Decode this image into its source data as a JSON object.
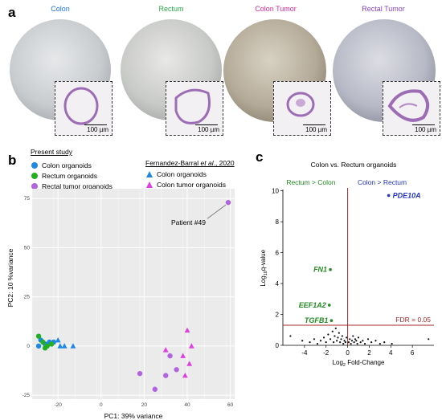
{
  "panel_a": {
    "letter": "a",
    "wells": [
      {
        "title": "Colon",
        "color": "#1a73e8",
        "scale": "100 µm",
        "tone": "#c9cccf"
      },
      {
        "title": "Rectum",
        "color": "#27a744",
        "scale": "100 µm",
        "tone": "#c8cac8"
      },
      {
        "title": "Colon Tumor",
        "color": "#d6269a",
        "scale": "100 µm",
        "tone": "#b4aa98"
      },
      {
        "title": "Rectal Tumor",
        "color": "#8a3fc4",
        "scale": "100 µm",
        "tone": "#b7b9c6"
      }
    ]
  },
  "panel_b": {
    "letter": "b",
    "legend_left_title": "Present study",
    "legend_left": [
      {
        "label": "Colon organoids",
        "color": "#1e88e5",
        "shape": "circle"
      },
      {
        "label": "Rectum organoids",
        "color": "#22b022",
        "shape": "circle"
      },
      {
        "label": "Rectal tumor organoids",
        "color": "#b264e0",
        "shape": "circle"
      }
    ],
    "legend_right_title_main": "Fernandez-Barral ",
    "legend_right_title_ital": "et al",
    "legend_right_title_end": "., 2020",
    "legend_right": [
      {
        "label": "Colon organoids",
        "color": "#1e88e5",
        "shape": "triangle"
      },
      {
        "label": "Colon tumor organoids",
        "color": "#e040e0",
        "shape": "triangle"
      }
    ],
    "annotation": "Patient #49",
    "chart_data": {
      "type": "scatter",
      "xlabel": "PC1: 39% variance",
      "ylabel": "PC2: 10 %variance",
      "xlim": [
        -32,
        62
      ],
      "ylim": [
        -27,
        80
      ],
      "xticks": [
        -20,
        0,
        20,
        40,
        60
      ],
      "yticks": [
        -25,
        0,
        25,
        50,
        75
      ],
      "xtick_labels": [
        "-20",
        "0",
        "20",
        "40",
        "60"
      ],
      "ytick_labels": [
        "-25",
        "0",
        "25",
        "50",
        "75"
      ],
      "grid": true,
      "series": [
        {
          "name": "Colon organoids",
          "shape": "circle",
          "color": "#1e88e5",
          "points": [
            [
              -28,
              3
            ],
            [
              -26,
              1
            ],
            [
              -24,
              2
            ],
            [
              -29,
              0
            ],
            [
              -22,
              2
            ]
          ]
        },
        {
          "name": "Rectum organoids",
          "shape": "circle",
          "color": "#22b022",
          "points": [
            [
              -29,
              5
            ],
            [
              -27,
              2
            ],
            [
              -25,
              0
            ],
            [
              -23,
              1
            ],
            [
              -26,
              -1
            ]
          ]
        },
        {
          "name": "Rectal tumor organoids",
          "shape": "circle",
          "color": "#b264e0",
          "points": [
            [
              59,
              73
            ],
            [
              32,
              -5
            ],
            [
              35,
              -12
            ],
            [
              30,
              -15
            ],
            [
              25,
              -22
            ],
            [
              18,
              -14
            ]
          ]
        },
        {
          "name": "Colon organoids",
          "shape": "triangle",
          "color": "#1e88e5",
          "points": [
            [
              -20,
              3
            ],
            [
              -19,
              0
            ],
            [
              -17,
              0
            ],
            [
              -13,
              0
            ]
          ]
        },
        {
          "name": "Colon tumor organoids",
          "shape": "triangle",
          "color": "#e040e0",
          "points": [
            [
              40,
              8
            ],
            [
              42,
              0
            ],
            [
              38,
              -5
            ],
            [
              41,
              -9
            ],
            [
              39,
              -15
            ],
            [
              30,
              -2
            ]
          ]
        }
      ]
    }
  },
  "panel_c": {
    "letter": "c",
    "title": "Colon vs. Rectum organoids",
    "left_label": "Rectum > Colon",
    "right_label": "Colon > Rectum",
    "fdr_label": "FDR = 0.05",
    "chart_data": {
      "type": "scatter",
      "xlabel": "Log2 Fold-Change",
      "ylabel": "Log10 q-value",
      "xlim": [
        -6,
        8
      ],
      "ylim": [
        0,
        10.5
      ],
      "xticks": [
        -4,
        -2,
        0,
        2,
        4,
        6
      ],
      "yticks": [
        0,
        2,
        4,
        6,
        8,
        10
      ],
      "fdr_line_y": 1.3,
      "vline_x": 0,
      "labeled_genes": [
        {
          "gene": "PDE10A",
          "x": 3.8,
          "y": 9.7,
          "color": "#2233cc"
        },
        {
          "gene": "FN1",
          "x": -1.6,
          "y": 4.9,
          "color": "#228b22"
        },
        {
          "gene": "EEF1A2",
          "x": -1.7,
          "y": 2.6,
          "color": "#228b22"
        },
        {
          "gene": "TGFB1",
          "x": -1.5,
          "y": 1.6,
          "color": "#228b22"
        }
      ],
      "background_points": [
        [
          -5.3,
          0.6
        ],
        [
          -4.2,
          0.3
        ],
        [
          -3.5,
          0.2
        ],
        [
          -3.1,
          0.4
        ],
        [
          -2.8,
          0.1
        ],
        [
          -2.5,
          0.3
        ],
        [
          -2.2,
          0.5
        ],
        [
          -2.0,
          0.2
        ],
        [
          -1.8,
          0.7
        ],
        [
          -1.6,
          0.4
        ],
        [
          -1.4,
          0.9
        ],
        [
          -1.3,
          0.2
        ],
        [
          -1.2,
          0.6
        ],
        [
          -1.1,
          1.1
        ],
        [
          -1.0,
          0.3
        ],
        [
          -0.9,
          0.5
        ],
        [
          -0.8,
          0.8
        ],
        [
          -0.7,
          0.2
        ],
        [
          -0.6,
          0.4
        ],
        [
          -0.5,
          0.6
        ],
        [
          -0.4,
          0.1
        ],
        [
          -0.3,
          0.3
        ],
        [
          -0.2,
          0.2
        ],
        [
          -0.1,
          0.5
        ],
        [
          0.1,
          0.2
        ],
        [
          0.2,
          0.4
        ],
        [
          0.3,
          0.1
        ],
        [
          0.4,
          0.3
        ],
        [
          0.5,
          0.6
        ],
        [
          0.6,
          0.2
        ],
        [
          0.7,
          0.4
        ],
        [
          0.8,
          0.3
        ],
        [
          0.9,
          0.1
        ],
        [
          1.0,
          0.5
        ],
        [
          1.2,
          0.2
        ],
        [
          1.4,
          0.3
        ],
        [
          1.6,
          0.1
        ],
        [
          1.9,
          0.4
        ],
        [
          2.2,
          0.2
        ],
        [
          2.6,
          0.3
        ],
        [
          3.0,
          0.1
        ],
        [
          3.4,
          0.2
        ],
        [
          4.1,
          0.1
        ],
        [
          7.5,
          0.4
        ]
      ]
    }
  }
}
